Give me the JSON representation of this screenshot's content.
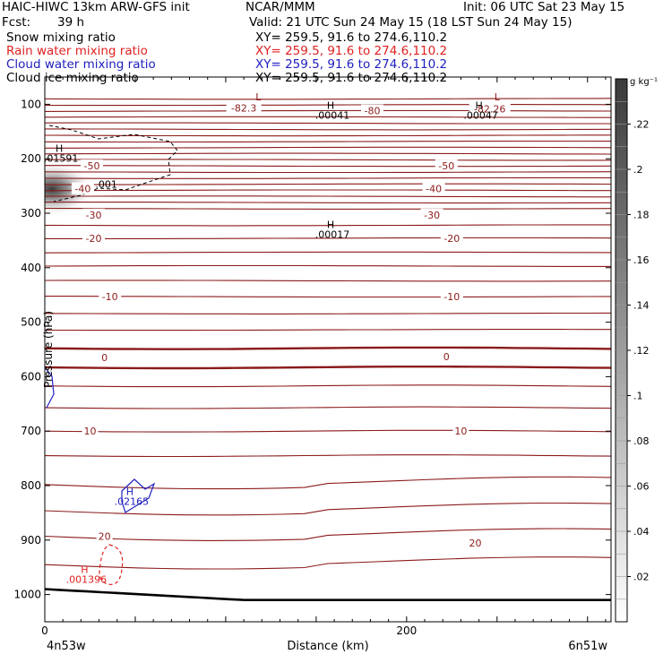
{
  "header": {
    "model": "HAIC-HIWC 13km ARW-GFS init",
    "org": "NCAR/MMM",
    "init": "Init: 06 UTC Sat 23 May 15",
    "fcst_label": "Fcst:",
    "fcst_value": "39 h",
    "valid": "Valid: 21 UTC Sun 24 May 15 (18 LST Sun 24 May 15)",
    "fields": [
      {
        "name": "Snow mixing ratio",
        "xy": "XY= 259.5, 91.6 to 274.6,110.2",
        "color": "#000000"
      },
      {
        "name": "Rain water mixing ratio",
        "xy": "XY= 259.5, 91.6 to 274.6,110.2",
        "color": "#e02020"
      },
      {
        "name": "Cloud water mixing ratio",
        "xy": "XY= 259.5, 91.6 to 274.6,110.2",
        "color": "#2020c0"
      },
      {
        "name": "Cloud ice mixing ratio",
        "xy": "XY= 259.5, 91.6 to 274.6,110.2",
        "color": "#000000"
      }
    ]
  },
  "chart_data": {
    "type": "cross-section",
    "xlabel": "Distance (km)",
    "ylabel": "Pressure (hPa)",
    "x_range_km": [
      0,
      313
    ],
    "y_range_hpa": [
      50,
      1050
    ],
    "x_ticks": [
      0,
      200
    ],
    "y_ticks": [
      100,
      200,
      300,
      400,
      500,
      600,
      700,
      800,
      900,
      1000
    ],
    "x_start_label": "4n53w",
    "x_end_label": "6n51w",
    "colorbar": {
      "unit": "g kg⁻¹",
      "range": [
        0,
        0.24
      ],
      "ticks": [
        ".02",
        ".04",
        ".06",
        ".08",
        ".1",
        ".12",
        ".14",
        ".16",
        ".18",
        ".2",
        ".22"
      ],
      "tick_values": [
        0.02,
        0.04,
        0.06,
        0.08,
        0.1,
        0.12,
        0.14,
        0.16,
        0.18,
        0.2,
        0.22
      ]
    },
    "colors": {
      "isotherm": "#8b1a1a",
      "rain": "#e02020",
      "cloud_water": "#2020c0",
      "ice": "#000000",
      "terrain": "#000000"
    },
    "temperature_labels": [
      {
        "text": "-82.3",
        "x": 110,
        "p": 107
      },
      {
        "text": "-80",
        "x": 181,
        "p": 112
      },
      {
        "text": "-82.26",
        "x": 246,
        "p": 108
      },
      {
        "text": "-50",
        "x": 26,
        "p": 213
      },
      {
        "text": "-50",
        "x": 222,
        "p": 213
      },
      {
        "text": "-40",
        "x": 21,
        "p": 255
      },
      {
        "text": "-40",
        "x": 215,
        "p": 255
      },
      {
        "text": "-30",
        "x": 27,
        "p": 303
      },
      {
        "text": "-30",
        "x": 214,
        "p": 303
      },
      {
        "text": "-20",
        "x": 27,
        "p": 346
      },
      {
        "text": "-20",
        "x": 225,
        "p": 346
      },
      {
        "text": "-10",
        "x": 36,
        "p": 453
      },
      {
        "text": "-10",
        "x": 225,
        "p": 453
      },
      {
        "text": "0",
        "x": 33,
        "p": 565
      },
      {
        "text": "0",
        "x": 222,
        "p": 563
      },
      {
        "text": "10",
        "x": 25,
        "p": 700
      },
      {
        "text": "10",
        "x": 230,
        "p": 700
      },
      {
        "text": "20",
        "x": 33,
        "p": 893
      },
      {
        "text": "20",
        "x": 238,
        "p": 905
      }
    ],
    "extrema": [
      {
        "mark": "L",
        "value": "",
        "x": 118,
        "p": 93,
        "color": "#8b1a1a"
      },
      {
        "mark": "L",
        "value": "",
        "x": 250,
        "p": 93,
        "color": "#8b1a1a"
      },
      {
        "mark": "H",
        "value": ".00041",
        "x": 158,
        "p": 108,
        "color": "#000000"
      },
      {
        "mark": "H",
        "value": ".00047",
        "x": 240,
        "p": 108,
        "color": "#000000"
      },
      {
        "mark": "H",
        "value": ".01591",
        "x": 8,
        "p": 187,
        "color": "#000000"
      },
      {
        "mark": "H",
        "value": ".00017",
        "x": 158,
        "p": 327,
        "color": "#000000"
      },
      {
        "mark": "H",
        "value": ".02165",
        "x": 47,
        "p": 817,
        "color": "#2020c0"
      },
      {
        "mark": "H",
        "value": ".001396",
        "x": 22,
        "p": 960,
        "color": "#e02020"
      }
    ],
    "ice_contour_label": {
      "text": ".001",
      "x": 34,
      "p": 253
    }
  }
}
